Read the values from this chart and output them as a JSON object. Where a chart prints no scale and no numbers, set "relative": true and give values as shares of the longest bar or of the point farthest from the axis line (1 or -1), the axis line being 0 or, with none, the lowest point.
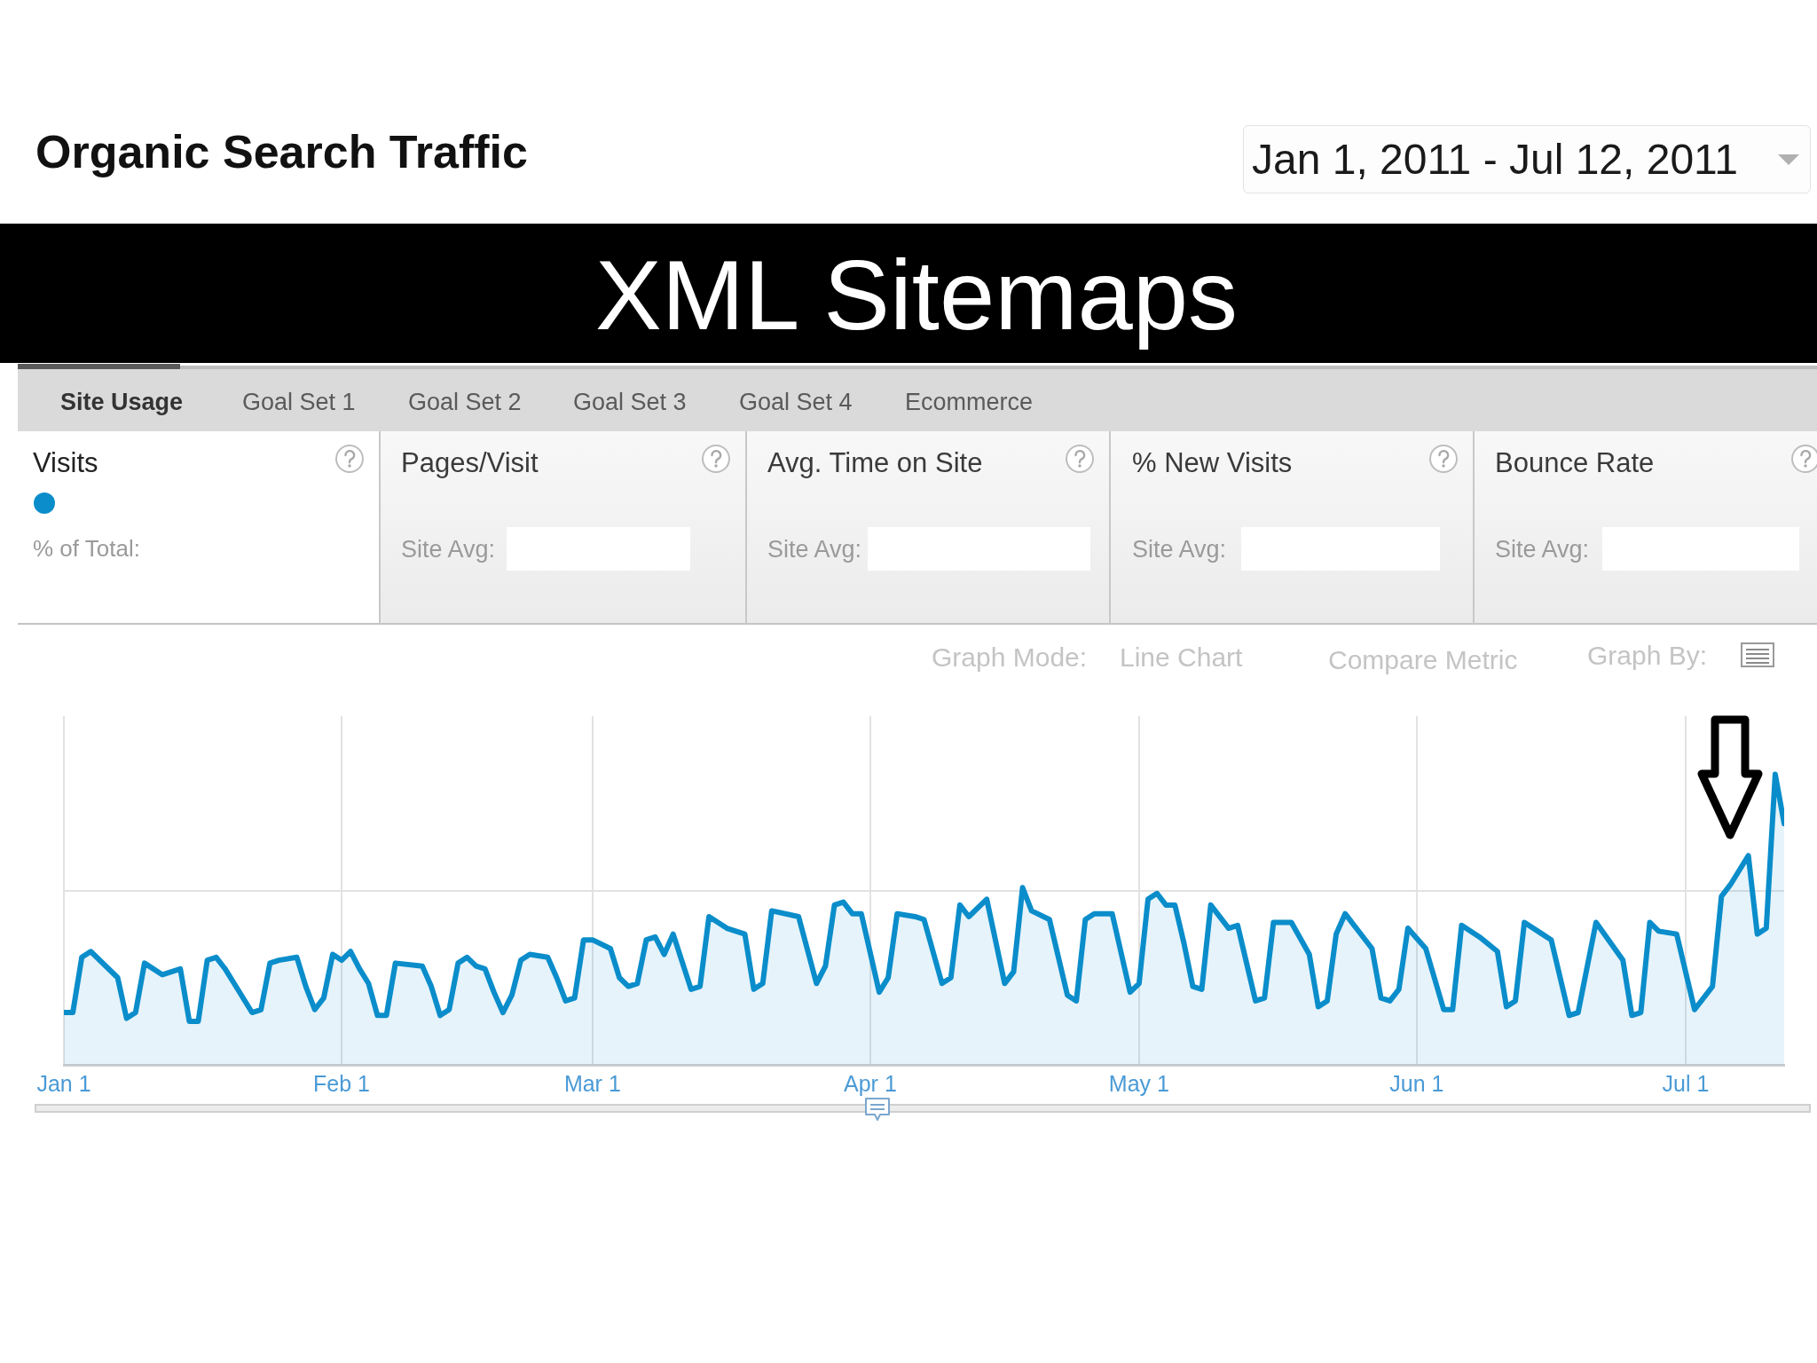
{
  "chart_data": {
    "type": "area",
    "title": "XML Sitemaps",
    "subtitle": "Organic Search Traffic",
    "annotations": [
      "Jan 1, 2011 - Jul 12, 2011",
      "Site Usage",
      "Goal Set 1",
      "Goal Set 2",
      "Goal Set 3",
      "Goal Set 4",
      "Ecommerce",
      "% of Total:",
      "Pages/Visit",
      "Site Avg:",
      "Avg. Time on Site",
      "Site Avg:",
      "% New Visits",
      "Site Avg:",
      "Bounce Rate",
      "Site Avg:",
      "Graph Mode:",
      "Line Chart",
      "Compare Metric",
      "Graph By:"
    ],
    "x": [
      "2011-01-01",
      "2011-01-02",
      "2011-01-03",
      "2011-01-04",
      "2011-01-07",
      "2011-01-08",
      "2011-01-09",
      "2011-01-10",
      "2011-01-12",
      "2011-01-14",
      "2011-01-15",
      "2011-01-16",
      "2011-01-17",
      "2011-01-18",
      "2011-01-19",
      "2011-01-20",
      "2011-01-22",
      "2011-01-23",
      "2011-01-24",
      "2011-01-25",
      "2011-01-27",
      "2011-01-28",
      "2011-01-29",
      "2011-01-30",
      "2011-01-31",
      "2011-02-01",
      "2011-02-02",
      "2011-02-03",
      "2011-02-04",
      "2011-02-05",
      "2011-02-06",
      "2011-02-07",
      "2011-02-10",
      "2011-02-11",
      "2011-02-12",
      "2011-02-13",
      "2011-02-14",
      "2011-02-15",
      "2011-02-16",
      "2011-02-17",
      "2011-02-18",
      "2011-02-19",
      "2011-02-20",
      "2011-02-21",
      "2011-02-22",
      "2011-02-24",
      "2011-02-25",
      "2011-02-26",
      "2011-02-27",
      "2011-02-28",
      "2011-03-01",
      "2011-03-03",
      "2011-03-04",
      "2011-03-05",
      "2011-03-06",
      "2011-03-07",
      "2011-03-08",
      "2011-03-09",
      "2011-03-10",
      "2011-03-12",
      "2011-03-13",
      "2011-03-14",
      "2011-03-15",
      "2011-03-16",
      "2011-03-18",
      "2011-03-19",
      "2011-03-20",
      "2011-03-21",
      "2011-03-24",
      "2011-03-26",
      "2011-03-27",
      "2011-03-28",
      "2011-03-29",
      "2011-03-30",
      "2011-03-31",
      "2011-04-02",
      "2011-04-03",
      "2011-04-04",
      "2011-04-06",
      "2011-04-07",
      "2011-04-09",
      "2011-04-10",
      "2011-04-11",
      "2011-04-12",
      "2011-04-14",
      "2011-04-16",
      "2011-04-17",
      "2011-04-18",
      "2011-04-19",
      "2011-04-21",
      "2011-04-23",
      "2011-04-24",
      "2011-04-25",
      "2011-04-26",
      "2011-04-28",
      "2011-04-30",
      "2011-05-01",
      "2011-05-02",
      "2011-05-03",
      "2011-05-04",
      "2011-05-05",
      "2011-05-06",
      "2011-05-07",
      "2011-05-08",
      "2011-05-09",
      "2011-05-11",
      "2011-05-12",
      "2011-05-14",
      "2011-05-15",
      "2011-05-16",
      "2011-05-18",
      "2011-05-20",
      "2011-05-21",
      "2011-05-22",
      "2011-05-23",
      "2011-05-24",
      "2011-05-27",
      "2011-05-28",
      "2011-05-29",
      "2011-05-30",
      "2011-05-31",
      "2011-06-02",
      "2011-06-04",
      "2011-06-05",
      "2011-06-06",
      "2011-06-08",
      "2011-06-10",
      "2011-06-11",
      "2011-06-12",
      "2011-06-13",
      "2011-06-15",
      "2011-06-16",
      "2011-06-18",
      "2011-06-19",
      "2011-06-21",
      "2011-06-24",
      "2011-06-25",
      "2011-06-26",
      "2011-06-27",
      "2011-06-28",
      "2011-06-30",
      "2011-07-02",
      "2011-07-04",
      "2011-07-05",
      "2011-07-06",
      "2011-07-08",
      "2011-07-09",
      "2011-07-10",
      "2011-07-11",
      "2011-07-12"
    ],
    "series": [
      {
        "name": "Visits",
        "color": "#0a8dca",
        "values": [
          0.18,
          0.18,
          0.37,
          0.39,
          0.3,
          0.16,
          0.18,
          0.35,
          0.31,
          0.33,
          0.15,
          0.15,
          0.36,
          0.37,
          0.33,
          0.28,
          0.18,
          0.19,
          0.35,
          0.36,
          0.37,
          0.27,
          0.19,
          0.23,
          0.38,
          0.36,
          0.39,
          0.33,
          0.28,
          0.17,
          0.17,
          0.35,
          0.34,
          0.27,
          0.17,
          0.19,
          0.35,
          0.37,
          0.34,
          0.33,
          0.25,
          0.18,
          0.24,
          0.36,
          0.38,
          0.37,
          0.3,
          0.22,
          0.23,
          0.43,
          0.43,
          0.4,
          0.3,
          0.27,
          0.28,
          0.43,
          0.44,
          0.38,
          0.45,
          0.26,
          0.27,
          0.51,
          0.49,
          0.47,
          0.45,
          0.26,
          0.28,
          0.53,
          0.51,
          0.28,
          0.34,
          0.55,
          0.56,
          0.52,
          0.52,
          0.25,
          0.3,
          0.52,
          0.51,
          0.5,
          0.28,
          0.3,
          0.55,
          0.51,
          0.57,
          0.28,
          0.32,
          0.61,
          0.53,
          0.5,
          0.24,
          0.22,
          0.5,
          0.52,
          0.52,
          0.25,
          0.28,
          0.57,
          0.59,
          0.55,
          0.55,
          0.42,
          0.27,
          0.26,
          0.55,
          0.47,
          0.48,
          0.22,
          0.23,
          0.49,
          0.49,
          0.38,
          0.2,
          0.22,
          0.45,
          0.52,
          0.4,
          0.23,
          0.22,
          0.26,
          0.47,
          0.4,
          0.19,
          0.19,
          0.48,
          0.44,
          0.39,
          0.2,
          0.22,
          0.49,
          0.45,
          0.43,
          0.17,
          0.18,
          0.49,
          0.36,
          0.17,
          0.18,
          0.49,
          0.46,
          0.45,
          0.19,
          0.27,
          0.58,
          0.62,
          0.72,
          0.45,
          0.47,
          1,
          0.83
        ]
      }
    ],
    "relative": true,
    "xlim": [
      "2011-01-01",
      "2011-07-12"
    ],
    "xticks": [
      {
        "value": "2011-01-01",
        "label": "Jan 1"
      },
      {
        "value": "2011-02-01",
        "label": "Feb 1"
      },
      {
        "value": "2011-03-01",
        "label": "Mar 1"
      },
      {
        "value": "2011-04-01",
        "label": "Apr 1"
      },
      {
        "value": "2011-05-01",
        "label": "May 1"
      },
      {
        "value": "2011-06-01",
        "label": "Jun 1"
      },
      {
        "value": "2011-07-01",
        "label": "Jul 1"
      }
    ],
    "grid": true,
    "legend": "top left",
    "marker": "none"
  }
}
